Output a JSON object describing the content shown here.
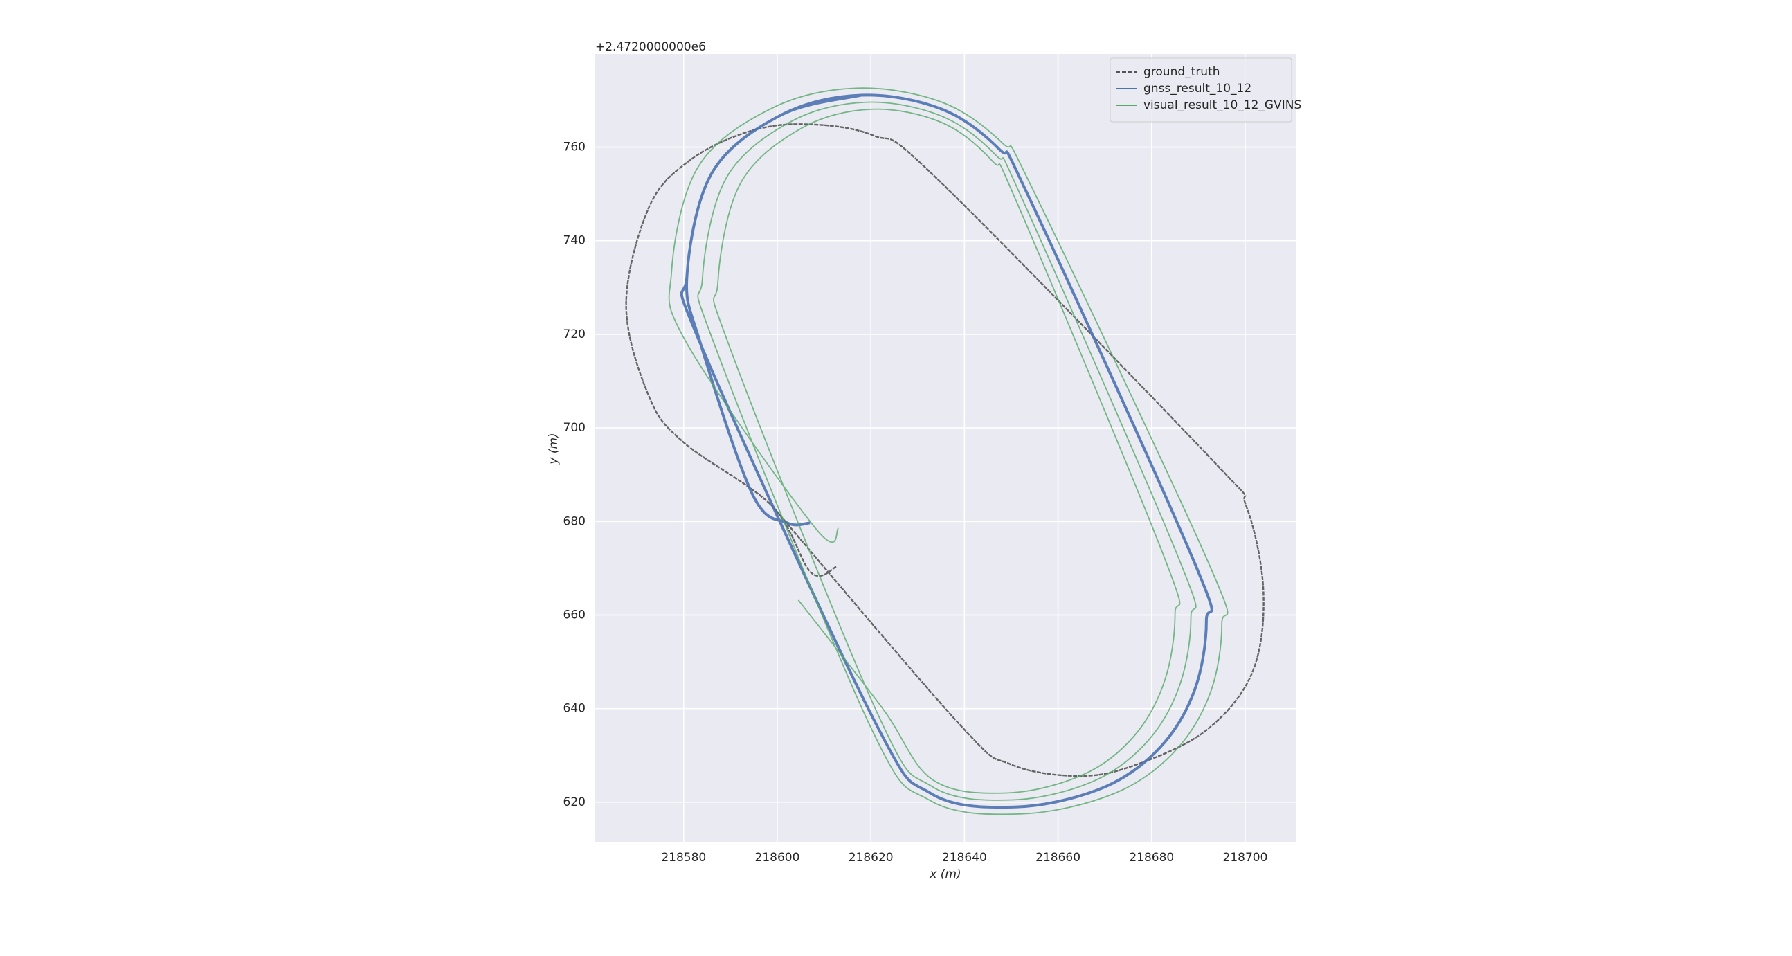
{
  "chart_data": {
    "type": "trajectory",
    "offset_text": "+2.4720000000e6",
    "xlabel": "x (m)",
    "ylabel": "y (m)",
    "xlim": [
      218561.1,
      218710.8
    ],
    "ylim": [
      611.4,
      779.9
    ],
    "xticks": [
      218580,
      218600,
      218620,
      218640,
      218660,
      218680,
      218700
    ],
    "yticks": [
      620,
      640,
      660,
      680,
      700,
      720,
      740,
      760
    ],
    "grid": true,
    "legend": "upper right",
    "series": [
      {
        "name": "ground_truth",
        "color": "#555555",
        "dashed": true,
        "x": [
          218612.6,
          218607.2,
          218598.9,
          218580.0,
          218572.6,
          218567.7,
          218572.6,
          218581.2,
          218593.5,
          218605.8,
          218620.5,
          218634.0,
          218692.9,
          218700.2,
          218703.9,
          218701.5,
          218691.7,
          218676.9,
          218664.7,
          218649.9,
          218638.9,
          218598.9
        ],
        "values": [
          670.3,
          669.1,
          683.3,
          696.9,
          706.7,
          726.3,
          747.2,
          757.1,
          763.2,
          764.9,
          762.5,
          753.4,
          693.2,
          683.3,
          664.9,
          647.7,
          635.4,
          628.1,
          625.6,
          628.1,
          636.7,
          683.3
        ]
      },
      {
        "name": "gnss_result_10_12",
        "color": "#4c72b0",
        "x": [
          218607.0,
          218602.1,
          218594.7,
          218583.7,
          218580.7,
          218586.1,
          218600.9,
          218618.0,
          218635.2,
          218647.5,
          218653.6,
          218689.2,
          218691.7,
          218689.2,
          218681.8,
          218669.6,
          218651.2,
          218632.8,
          218620.5,
          218583.7,
          218580.7,
          218586.1,
          218600.9,
          218618.0
        ],
        "values": [
          679.7,
          679.7,
          685.8,
          717.7,
          732.5,
          754.6,
          766.9,
          771.1,
          768.1,
          759.5,
          749.7,
          671.1,
          658.8,
          644.0,
          631.7,
          623.1,
          619.0,
          621.9,
          637.9,
          717.7,
          732.5,
          754.6,
          766.9,
          771.1
        ]
      },
      {
        "name": "visual_result_10_12_GVINS",
        "color": "#55a868",
        "x": [
          218613.1,
          218608.2,
          218580.6,
          218577.4,
          218583.1,
          218598.8,
          218616.9,
          218635.2,
          218648.2,
          218654.7,
          218692.4,
          218695.0,
          218692.4,
          218684.5,
          218671.6,
          218652.1,
          218632.6,
          218619.6,
          218586.8,
          218584.0,
          218589.1,
          218603.0,
          218619.1,
          218635.2,
          218646.8,
          218652.5,
          218686.0,
          218688.4,
          218686.0,
          218679.1,
          218667.6,
          218650.3,
          218633.0,
          218621.4,
          218590.0,
          218587.3,
          218592.1,
          218605.1,
          218620.2,
          218635.3,
          218646.1,
          218651.5,
          218682.8,
          218685.0,
          218682.8,
          218676.3,
          218665.6,
          218649.4,
          218633.2,
          218622.4,
          218604.5
        ],
        "values": [
          678.5,
          678.5,
          718.2,
          733.3,
          755.8,
          768.3,
          772.6,
          769.6,
          760.8,
          750.8,
          670.6,
          658.1,
          643.0,
          630.4,
          621.7,
          617.5,
          620.4,
          636.8,
          717.2,
          731.8,
          753.4,
          765.5,
          769.6,
          766.6,
          758.2,
          748.6,
          671.6,
          659.5,
          645.0,
          633.0,
          624.5,
          620.5,
          623.4,
          639.0,
          716.8,
          731.0,
          752.2,
          764.0,
          768.1,
          765.2,
          756.9,
          747.5,
          672.1,
          660.2,
          646.0,
          634.2,
          626.0,
          622.0,
          624.8,
          640.2,
          663.2
        ]
      }
    ]
  }
}
